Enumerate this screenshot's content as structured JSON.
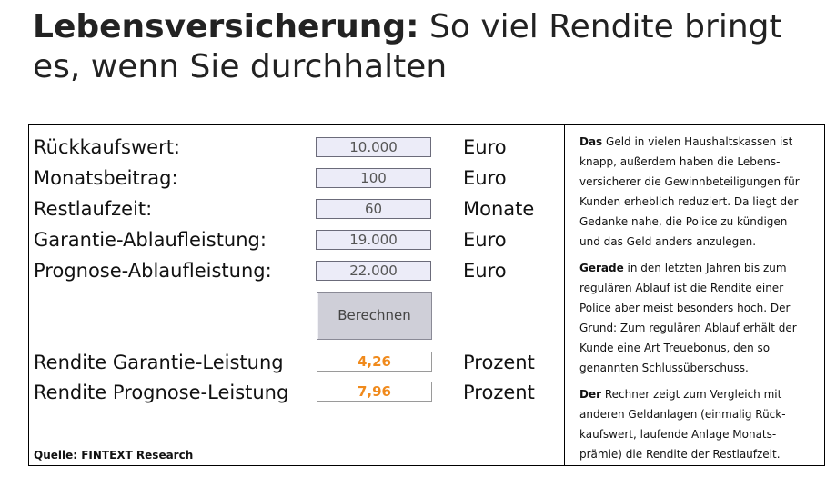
{
  "headline": {
    "bold": "Lebensversicherung:",
    "rest": " So viel Rendite bringt es, wenn Sie durchhalten"
  },
  "calculator": {
    "rows": [
      {
        "label": "Rückkaufswert:",
        "value": "10.000",
        "unit": "Euro"
      },
      {
        "label": "Monatsbeitrag:",
        "value": "100",
        "unit": "Euro"
      },
      {
        "label": "Restlaufzeit:",
        "value": "60",
        "unit": "Monate"
      },
      {
        "label": "Garantie-Ablaufleistung:",
        "value": "19.000",
        "unit": "Euro"
      },
      {
        "label": "Prognose-Ablaufleistung:",
        "value": "22.000",
        "unit": "Euro"
      }
    ],
    "button_label": "Berechnen",
    "results": [
      {
        "label": "Rendite Garantie-Leistung",
        "value": "4,26",
        "unit": "Prozent"
      },
      {
        "label": "Rendite Prognose-Leistung",
        "value": "7,96",
        "unit": "Prozent"
      }
    ],
    "source": "Quelle: FINTEXT Research"
  },
  "sidebar": {
    "p1_bold": "Das",
    "p1_text": " Geld in vielen Haushaltskassen ist knapp, außerdem haben die Lebens-versicherer die Gewinnbeteiligungen für Kunden erheblich reduziert. Da liegt der Gedanke nahe, die Police zu kündigen und das Geld anders anzulegen.",
    "p2_bold": "Gerade",
    "p2_text": " in den letzten Jahren bis zum regulären Ablauf ist die Rendite einer Police aber meist besonders hoch. Der Grund: Zum regulären Ablauf erhält der Kunde eine Art Treuebonus, den so genannten Schlussüberschuss.",
    "p3_bold": "Der",
    "p3_text": " Rechner zeigt zum Vergleich mit anderen Geldanlagen (einmalig Rück-kaufswert, laufende Anlage Monats-prämie) die Rendite der Restlaufzeit."
  },
  "colors": {
    "result_text": "#f08a1c",
    "field_bg": "#ececf8",
    "button_bg": "#cfcfd8"
  }
}
